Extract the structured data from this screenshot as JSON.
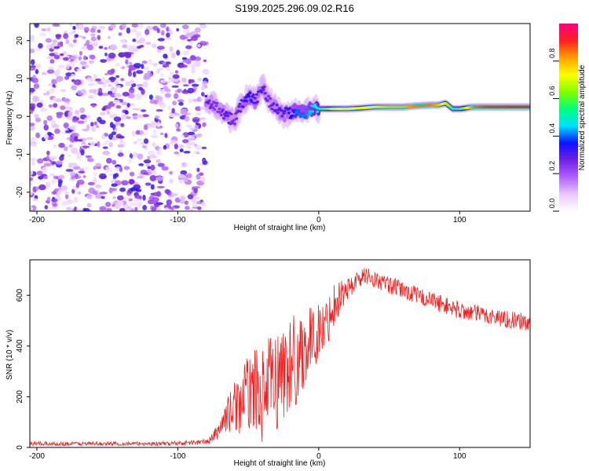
{
  "figure_title": "S199.2025.296.09.02.R16",
  "colors": {
    "snr_line": "#ee2020",
    "frame": "#000000",
    "colorbar_stops": [
      "#ffffff",
      "#e8c8ff",
      "#b060ff",
      "#7020e0",
      "#1010ff",
      "#00e0ff",
      "#00ff80",
      "#80ff00",
      "#ffff00",
      "#ffa000",
      "#ff2020",
      "#ff0080"
    ]
  },
  "chart_data": [
    {
      "type": "heatmap",
      "title": "S199.2025.296.09.02.R16",
      "xlabel": "Height of straight line (km)",
      "ylabel": "Frequency (Hz)",
      "xlim": [
        -205,
        150
      ],
      "ylim": [
        -25,
        24.5
      ],
      "xticks": [
        -200,
        -100,
        0,
        100
      ],
      "xtick_labels": [
        "-200",
        "-100",
        "0",
        "100"
      ],
      "yticks": [
        -20,
        -10,
        0,
        10,
        20
      ],
      "ytick_labels": [
        "-20",
        "-10",
        "0",
        "10",
        "20"
      ],
      "noise_region": {
        "x_range": [
          -205,
          -80
        ],
        "description_value_range": [
          0.05,
          0.25
        ]
      },
      "signal_track": {
        "x": [
          -80,
          -75,
          -70,
          -65,
          -60,
          -55,
          -50,
          -45,
          -40,
          -35,
          -30,
          -25,
          -20,
          -15,
          -10,
          -5,
          0,
          10,
          20,
          30,
          40,
          50,
          60,
          70,
          80,
          85,
          90,
          95,
          100,
          110,
          120,
          130,
          140,
          150
        ],
        "freq": [
          4.5,
          3,
          2,
          0,
          -1,
          3,
          5,
          4,
          8,
          4,
          2,
          0.5,
          1,
          1.5,
          1,
          2,
          2,
          2,
          2,
          2.2,
          2.5,
          2.5,
          2.5,
          2.8,
          3,
          3,
          3.5,
          2,
          2,
          2.5,
          2.5,
          2.5,
          2.5,
          2.5
        ],
        "amplitude": [
          0.3,
          0.25,
          0.25,
          0.3,
          0.25,
          0.3,
          0.35,
          0.3,
          0.3,
          0.25,
          0.3,
          0.3,
          0.35,
          0.4,
          0.4,
          0.45,
          0.5,
          0.7,
          0.75,
          0.7,
          0.75,
          0.8,
          0.8,
          0.85,
          0.85,
          0.8,
          0.7,
          0.55,
          0.55,
          0.85,
          0.9,
          0.9,
          0.92,
          0.92
        ]
      },
      "colorbar": {
        "label": "Normalized spectral amplitude",
        "range": [
          0,
          1
        ],
        "ticks": [
          0.0,
          0.2,
          0.4,
          0.6,
          0.8
        ],
        "tick_labels": [
          "0.0",
          "0.2",
          "0.4",
          "0.6",
          "0.8"
        ]
      }
    },
    {
      "type": "line",
      "title": "",
      "xlabel": "Height of straight line (km)",
      "ylabel": "SNR (10 * v/v)",
      "xlim": [
        -205,
        150
      ],
      "ylim": [
        0,
        740
      ],
      "xticks": [
        -200,
        -100,
        0,
        100
      ],
      "xtick_labels": [
        "-200",
        "-100",
        "0",
        "100"
      ],
      "yticks": [
        0,
        200,
        400,
        600
      ],
      "ytick_labels": [
        "0",
        "200",
        "400",
        "600"
      ],
      "grid": false,
      "series": [
        {
          "name": "SNR",
          "x": [
            -205,
            -190,
            -170,
            -150,
            -130,
            -110,
            -95,
            -85,
            -78,
            -72,
            -66,
            -60,
            -55,
            -50,
            -45,
            -40,
            -35,
            -30,
            -25,
            -20,
            -15,
            -10,
            -5,
            0,
            5,
            10,
            15,
            20,
            25,
            30,
            35,
            40,
            50,
            60,
            70,
            80,
            90,
            100,
            110,
            120,
            130,
            140,
            150
          ],
          "values": [
            15,
            15,
            15,
            15,
            15,
            15,
            18,
            20,
            25,
            60,
            120,
            160,
            180,
            220,
            230,
            200,
            250,
            260,
            300,
            330,
            350,
            400,
            420,
            460,
            480,
            560,
            600,
            620,
            650,
            670,
            680,
            660,
            640,
            620,
            600,
            580,
            560,
            540,
            530,
            520,
            510,
            500,
            490
          ],
          "noise_amplitude": [
            8,
            8,
            8,
            8,
            8,
            8,
            10,
            10,
            12,
            30,
            60,
            100,
            130,
            150,
            160,
            180,
            190,
            200,
            210,
            200,
            190,
            160,
            130,
            110,
            100,
            90,
            70,
            50,
            40,
            35,
            35,
            35,
            35,
            35,
            35,
            35,
            35,
            35,
            35,
            35,
            35,
            35,
            35
          ]
        }
      ]
    }
  ]
}
